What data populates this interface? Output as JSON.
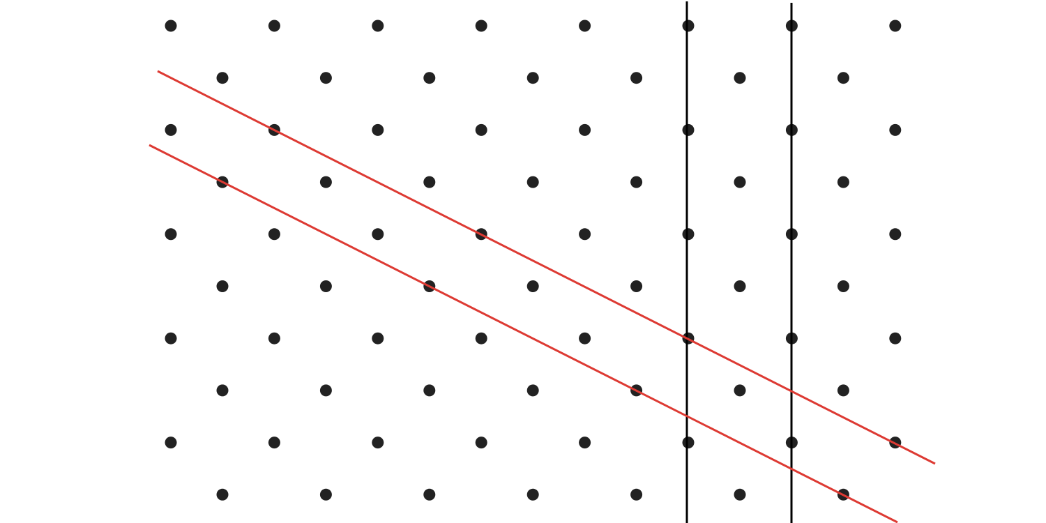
{
  "diagram": {
    "type": "triangular-lattice-with-lines",
    "background": "#ffffff",
    "colors": {
      "dot": "#222222",
      "vertical_line": "#000000",
      "diagonal_line": "#dd3a33"
    },
    "lattice": {
      "rows": 10,
      "even_row_dots": 8,
      "odd_row_dots": 7
    },
    "vertical_lines": [
      {
        "name": "vertical-line-1"
      },
      {
        "name": "vertical-line-2"
      }
    ],
    "diagonal_lines": [
      {
        "name": "red-diagonal-line-1"
      },
      {
        "name": "red-diagonal-line-2"
      }
    ]
  }
}
